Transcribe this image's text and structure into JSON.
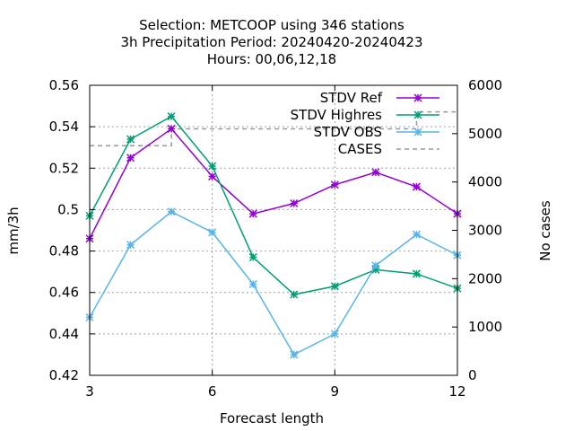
{
  "title_lines": [
    "Selection: METCOOP using   346 stations",
    "3h Precipitation   Period: 20240420-20240423",
    "Hours:  00,06,12,18"
  ],
  "chart_data": {
    "type": "line",
    "xlabel": "Forecast length",
    "ylabel": "mm/3h",
    "y2label": "No cases",
    "xlim": [
      3,
      12
    ],
    "ylim": [
      0.42,
      0.56
    ],
    "y2lim": [
      0,
      6000
    ],
    "x_ticks": [
      3,
      6,
      9,
      12
    ],
    "y_ticks": [
      0.42,
      0.44,
      0.46,
      0.48,
      0.5,
      0.52,
      0.54,
      0.56
    ],
    "y_tick_labels": [
      "0.42",
      "0.44",
      "0.46",
      "0.48",
      "0.5",
      "0.52",
      "0.54",
      "0.56"
    ],
    "y2_ticks": [
      0,
      1000,
      2000,
      3000,
      4000,
      5000,
      6000
    ],
    "grid": true,
    "legend_position": "top-right",
    "x": [
      3,
      4,
      5,
      6,
      7,
      8,
      9,
      10,
      11,
      12
    ],
    "series": [
      {
        "name": "STDV Ref",
        "color": "#9400d3",
        "axis": "y1",
        "style": "line-points",
        "values": [
          0.486,
          0.525,
          0.539,
          0.516,
          0.498,
          0.503,
          0.512,
          0.518,
          0.511,
          0.498
        ]
      },
      {
        "name": "STDV Highres",
        "color": "#009e73",
        "axis": "y1",
        "style": "line-points",
        "values": [
          0.497,
          0.534,
          0.545,
          0.521,
          0.477,
          0.459,
          0.463,
          0.471,
          0.469,
          0.462
        ]
      },
      {
        "name": "STDV OBS",
        "color": "#56b4e9",
        "axis": "y1",
        "style": "line-points",
        "values": [
          0.448,
          0.483,
          0.499,
          0.489,
          0.464,
          0.43,
          0.44,
          0.473,
          0.488,
          0.478
        ]
      },
      {
        "name": "CASES",
        "color": "#999999",
        "axis": "y2",
        "style": "dashed",
        "values": [
          4750,
          4750,
          5100,
          5100,
          5100,
          5100,
          5100,
          5100,
          5450,
          5450
        ]
      }
    ]
  }
}
